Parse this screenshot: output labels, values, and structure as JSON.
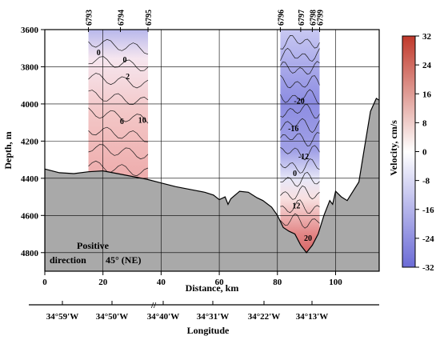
{
  "chart_data": {
    "type": "heatmap",
    "title": "",
    "xlabel": "Distance, km",
    "ylabel": "Depth, m",
    "xlim": [
      0,
      115
    ],
    "ylim": [
      4900,
      3600
    ],
    "x_ticks": [
      0,
      20,
      40,
      60,
      80,
      100
    ],
    "y_ticks": [
      3600,
      3800,
      4000,
      4200,
      4400,
      4600,
      4800
    ],
    "grid": true,
    "colorbar": {
      "label": "Velocity, cm/s",
      "min": -32,
      "max": 32,
      "ticks": [
        32,
        24,
        16,
        8,
        0,
        -8,
        -16,
        -24,
        -32
      ],
      "color_positive": "#c0392b",
      "color_negative": "#6b6bd6",
      "color_zero": "#ffffff",
      "position": "right"
    },
    "stations": [
      {
        "id": "6793",
        "x": 15
      },
      {
        "id": "6794",
        "x": 26
      },
      {
        "id": "6795",
        "x": 35.5
      },
      {
        "id": "6796",
        "x": 81
      },
      {
        "id": "6797",
        "x": 88
      },
      {
        "id": "6798",
        "x": 92
      },
      {
        "id": "6799",
        "x": 94.5
      }
    ],
    "bottom_profile": [
      [
        0,
        4350
      ],
      [
        5,
        4370
      ],
      [
        10,
        4375
      ],
      [
        15,
        4365
      ],
      [
        20,
        4360
      ],
      [
        25,
        4375
      ],
      [
        30,
        4390
      ],
      [
        35,
        4405
      ],
      [
        40,
        4425
      ],
      [
        45,
        4445
      ],
      [
        50,
        4460
      ],
      [
        55,
        4475
      ],
      [
        58,
        4490
      ],
      [
        60,
        4515
      ],
      [
        62,
        4500
      ],
      [
        63,
        4540
      ],
      [
        64,
        4510
      ],
      [
        67,
        4470
      ],
      [
        70,
        4475
      ],
      [
        73,
        4505
      ],
      [
        75,
        4520
      ],
      [
        78,
        4555
      ],
      [
        80,
        4600
      ],
      [
        82,
        4665
      ],
      [
        84,
        4685
      ],
      [
        86,
        4700
      ],
      [
        88,
        4760
      ],
      [
        90,
        4800
      ],
      [
        92,
        4760
      ],
      [
        94,
        4700
      ],
      [
        96,
        4600
      ],
      [
        98,
        4520
      ],
      [
        99,
        4540
      ],
      [
        100,
        4470
      ],
      [
        102,
        4500
      ],
      [
        104,
        4520
      ],
      [
        106,
        4470
      ],
      [
        108,
        4420
      ],
      [
        110,
        4230
      ],
      [
        112,
        4040
      ],
      [
        114,
        3970
      ],
      [
        115,
        3980
      ]
    ],
    "sections": [
      {
        "x_range": [
          15,
          35.5
        ],
        "contour_labels": [
          {
            "value": "0",
            "x": 18.5,
            "y": 3720
          },
          {
            "value": "0",
            "x": 27.5,
            "y": 3760
          },
          {
            "value": "2",
            "x": 28.5,
            "y": 3850
          },
          {
            "value": "6",
            "x": 26.5,
            "y": 4090
          },
          {
            "value": "10",
            "x": 33.5,
            "y": 4085
          }
        ]
      },
      {
        "x_range": [
          81,
          94.5
        ],
        "contour_labels": [
          {
            "value": "-20",
            "x": 87.5,
            "y": 3980
          },
          {
            "value": "-16",
            "x": 85.5,
            "y": 4130
          },
          {
            "value": "-12",
            "x": 89,
            "y": 4280
          },
          {
            "value": "0",
            "x": 86,
            "y": 4370
          },
          {
            "value": "12",
            "x": 86.5,
            "y": 4545
          },
          {
            "value": "20",
            "x": 90.5,
            "y": 4720
          }
        ]
      }
    ],
    "annotation": {
      "line1": "Positive",
      "line2": "direction",
      "line3": "45° (NE)"
    },
    "longitude_axis": {
      "label": "Longitude",
      "ticks": [
        "34°59'W",
        "34°50'W",
        "34°40'W",
        "34°31'W",
        "34°22'W",
        "34°13'W"
      ],
      "break_mark": "//"
    }
  },
  "colors": {
    "bottom_fill": "#a9a9a9",
    "grid": "#000000"
  }
}
